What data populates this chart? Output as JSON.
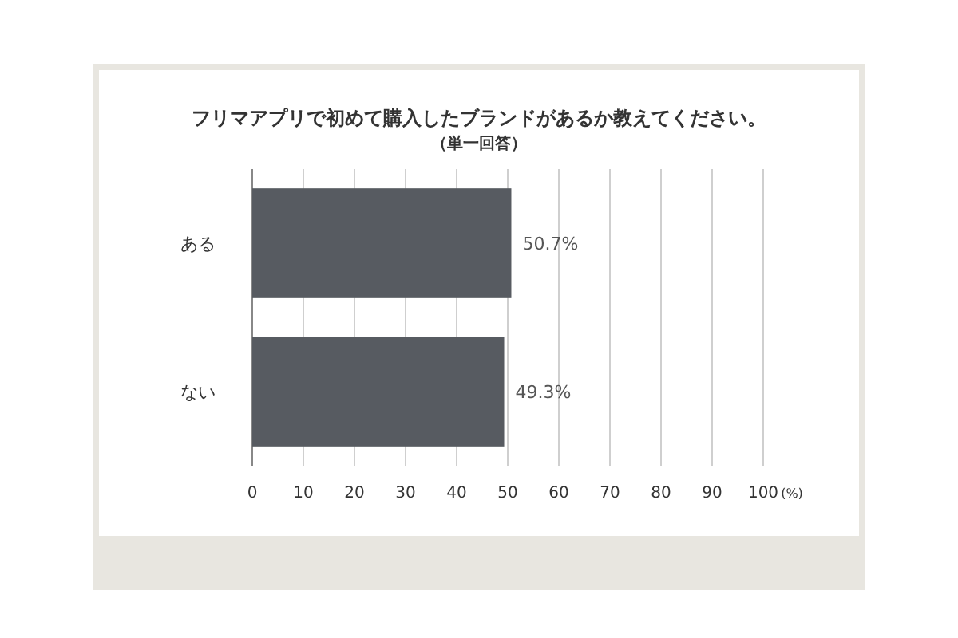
{
  "chart_data": {
    "type": "bar",
    "orientation": "horizontal",
    "title": "フリマアプリで初めて購入したブランドがあるか教えてください。",
    "subtitle": "（単一回答）",
    "xlabel": "(%)",
    "categories": [
      "ある",
      "ない"
    ],
    "values": [
      50.7,
      49.3
    ],
    "value_labels": [
      "50.7%",
      "49.3%"
    ],
    "color": "#575b61",
    "xlim": [
      0,
      100
    ],
    "xticks": [
      0,
      10,
      20,
      30,
      40,
      50,
      60,
      70,
      80,
      90,
      100
    ],
    "grid": "x"
  }
}
